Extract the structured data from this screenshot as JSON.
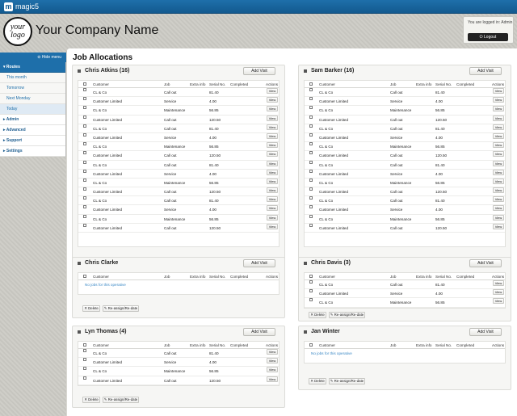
{
  "app": {
    "name": "magic5",
    "logo_text": "your logo",
    "company_name": "Your Company Name",
    "login_status": "You are logged in: Admin",
    "logout_label": "Logout"
  },
  "sidebar": {
    "hide_menu": "Hide menu",
    "routes_label": "Routes",
    "routes": [
      "This month",
      "Tomorrow",
      "Next Monday",
      "Today"
    ],
    "links": [
      "Admin",
      "Advanced",
      "Support",
      "Settings"
    ]
  },
  "page_title": "Job Allocations",
  "table_headers": {
    "customer": "Customer",
    "job": "Job",
    "extra": "Extra info",
    "serial": "Serial No.",
    "completed": "Completed",
    "actions": "Actions"
  },
  "labels": {
    "add_visit": "Add Visit",
    "view": "View",
    "delete": "Delete",
    "reassign": "Re-assign/Re-date",
    "no_jobs": "No jobs for this operative"
  },
  "operatives": [
    {
      "name": "Chris Atkins (16)",
      "jobs": [
        {
          "customer": "CL & Co",
          "job": "Call out",
          "serial": "81.40"
        },
        {
          "customer": "Customer Limited",
          "job": "Service",
          "serial": "4.00"
        },
        {
          "customer": "CL & Co",
          "job": "Maintenance",
          "serial": "56.85"
        },
        {
          "customer": "Customer Limited",
          "job": "Call out",
          "serial": "120.50"
        },
        {
          "customer": "CL & Co",
          "job": "Call out",
          "serial": "81.40"
        },
        {
          "customer": "Customer Limited",
          "job": "Service",
          "serial": "4.00"
        },
        {
          "customer": "CL & Co",
          "job": "Maintenance",
          "serial": "56.85"
        },
        {
          "customer": "Customer Limited",
          "job": "Call out",
          "serial": "120.50"
        },
        {
          "customer": "CL & Co",
          "job": "Call out",
          "serial": "81.40"
        },
        {
          "customer": "Customer Limited",
          "job": "Service",
          "serial": "4.00"
        },
        {
          "customer": "CL & Co",
          "job": "Maintenance",
          "serial": "56.85"
        },
        {
          "customer": "Customer Limited",
          "job": "Call out",
          "serial": "120.50"
        },
        {
          "customer": "CL & Co",
          "job": "Call out",
          "serial": "81.40"
        },
        {
          "customer": "Customer Limited",
          "job": "Service",
          "serial": "4.00"
        },
        {
          "customer": "CL & Co",
          "job": "Maintenance",
          "serial": "56.85"
        },
        {
          "customer": "Customer Limited",
          "job": "Call out",
          "serial": "120.50"
        }
      ]
    },
    {
      "name": "Sam Barker (16)",
      "jobs": [
        {
          "customer": "CL & Co",
          "job": "Call out",
          "serial": "81.40"
        },
        {
          "customer": "Customer Limited",
          "job": "Service",
          "serial": "4.00"
        },
        {
          "customer": "CL & Co",
          "job": "Maintenance",
          "serial": "56.85"
        },
        {
          "customer": "Customer Limited",
          "job": "Call out",
          "serial": "120.50"
        },
        {
          "customer": "CL & Co",
          "job": "Call out",
          "serial": "81.40"
        },
        {
          "customer": "Customer Limited",
          "job": "Service",
          "serial": "4.00"
        },
        {
          "customer": "CL & Co",
          "job": "Maintenance",
          "serial": "56.85"
        },
        {
          "customer": "Customer Limited",
          "job": "Call out",
          "serial": "120.50"
        },
        {
          "customer": "CL & Co",
          "job": "Call out",
          "serial": "81.40"
        },
        {
          "customer": "Customer Limited",
          "job": "Service",
          "serial": "4.00"
        },
        {
          "customer": "CL & Co",
          "job": "Maintenance",
          "serial": "56.85"
        },
        {
          "customer": "Customer Limited",
          "job": "Call out",
          "serial": "120.50"
        },
        {
          "customer": "CL & Co",
          "job": "Call out",
          "serial": "81.40"
        },
        {
          "customer": "Customer Limited",
          "job": "Service",
          "serial": "4.00"
        },
        {
          "customer": "CL & Co",
          "job": "Maintenance",
          "serial": "56.85"
        },
        {
          "customer": "Customer Limited",
          "job": "Call out",
          "serial": "120.50"
        }
      ]
    },
    {
      "name": "Chris Clarke",
      "jobs": []
    },
    {
      "name": "Chris Davis (3)",
      "jobs": [
        {
          "customer": "CL & Co",
          "job": "Call out",
          "serial": "81.40"
        },
        {
          "customer": "Customer Limited",
          "job": "Service",
          "serial": "4.00"
        },
        {
          "customer": "CL & Co",
          "job": "Maintenance",
          "serial": "56.85"
        }
      ]
    },
    {
      "name": "Lyn Thomas (4)",
      "jobs": [
        {
          "customer": "CL & Co",
          "job": "Call out",
          "serial": "81.40"
        },
        {
          "customer": "Customer Limited",
          "job": "Service",
          "serial": "4.00"
        },
        {
          "customer": "CL & Co",
          "job": "Maintenance",
          "serial": "56.85"
        },
        {
          "customer": "Customer Limited",
          "job": "Call out",
          "serial": "120.50"
        }
      ]
    },
    {
      "name": "Jan Winter",
      "jobs": []
    }
  ]
}
